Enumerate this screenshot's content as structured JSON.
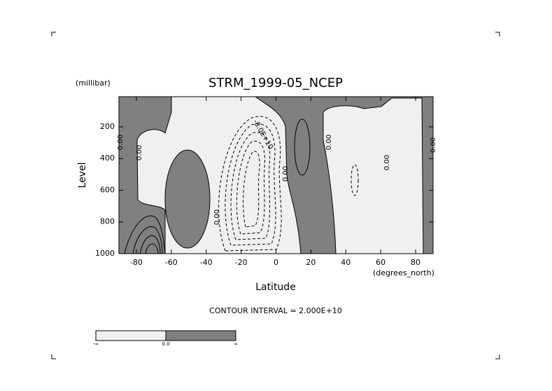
{
  "chart_data": {
    "type": "contour",
    "title": "STRM_1999-05_NCEP",
    "y_unit": "(millibar)",
    "y_label": "Level",
    "x_label": "Latitude",
    "x_unit": "(degrees_north)",
    "note": "CONTOUR INTERVAL = 2.000E+10",
    "xlim": [
      -90,
      90
    ],
    "xticks": [
      -80,
      -60,
      -40,
      -20,
      0,
      20,
      40,
      60,
      80
    ],
    "ylim": [
      1000,
      10
    ],
    "yticks": [
      200,
      400,
      600,
      800,
      1000
    ],
    "contour_labels": [
      "0.00",
      "0.00",
      "0.00",
      "-8.0E+10",
      "0.00",
      "0.00",
      "0.00",
      "0.00"
    ],
    "colorbar_labels": [
      "-∞",
      "0.0",
      "∞"
    ]
  }
}
